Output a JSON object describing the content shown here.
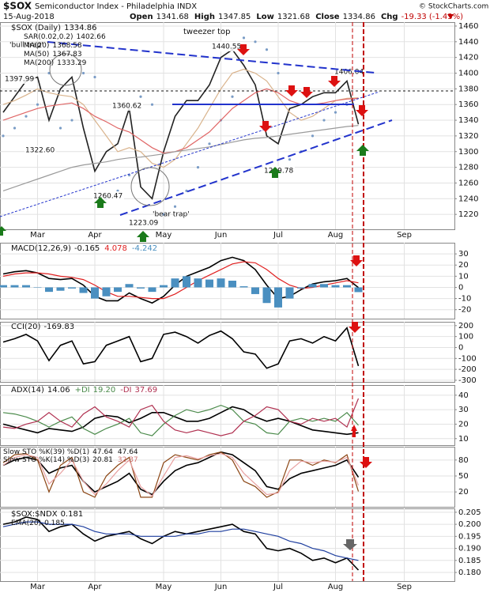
{
  "chart_data": [
    {
      "type": "line",
      "title": "$SOX",
      "subtitle": "Semiconductor Index - Philadelphia INDX",
      "date": "15-Aug-2018",
      "stats": [
        {
          "label": "Open",
          "value": 1341.68
        },
        {
          "label": "High",
          "value": 1347.85
        },
        {
          "label": "Low",
          "value": 1321.68
        },
        {
          "label": "Close",
          "value": 1334.86
        },
        {
          "label": "Chg",
          "value": -19.33
        }
      ],
      "change_pct": {
        "value": -1.43,
        "label": "(-1.43%)"
      },
      "source": "© StockCharts.com",
      "annotations": [
        "tweezer top",
        "'bear trap'",
        "'bull trap'"
      ],
      "price_labels": [
        1397.99,
        {
          "value": 1322.6,
          "label": "1322.60"
        },
        1260.47,
        1223.09,
        1360.62,
        1440.55,
        1299.78,
        1406.04
      ],
      "categories": [
        null,
        null,
        null,
        "Mar",
        null,
        null,
        null,
        null,
        "Apr",
        null,
        null,
        null,
        null,
        null,
        "May",
        null,
        null,
        null,
        null,
        "Jun",
        null,
        null,
        null,
        null,
        "Jul",
        null,
        null,
        null,
        null,
        "Aug",
        null,
        null,
        null,
        null,
        null,
        "Sep"
      ],
      "ylim": [
        1201,
        1465
      ],
      "yticks": [
        1220,
        1240,
        1260,
        1280,
        1300,
        1320,
        1340,
        1360,
        1380,
        1400,
        1420,
        1440,
        1460
      ],
      "grid": true,
      "series": [
        {
          "name": "$SOX (Daily)",
          "color": "#222222",
          "values": [
            1350,
            1370,
            1390,
            1395,
            1340,
            1380,
            1395,
            1330,
            1275,
            1300,
            1310,
            1355,
            1255,
            1240,
            1300,
            1345,
            1365,
            1365,
            1385,
            1420,
            1430,
            1410,
            1385,
            1320,
            1310,
            1355,
            1360,
            1370,
            1375,
            1375,
            1390,
            1334.86,
            null,
            null,
            null,
            null
          ]
        },
        {
          "name": "SAR(0.02,0.2)",
          "color": "#7a9cc6",
          "style": "dots",
          "values": [
            1320,
            1330,
            1345,
            1360,
            1400,
            1330,
            1340,
            1400,
            1395,
            1240,
            1250,
            1270,
            1370,
            1360,
            1220,
            1230,
            1250,
            1280,
            1310,
            1340,
            1370,
            1445,
            1440,
            1430,
            1400,
            1290,
            1300,
            1320,
            1340,
            1350,
            1360,
            1402.66,
            null,
            null,
            null,
            null
          ]
        },
        {
          "name": "MA(20)",
          "color": "#d9b38c",
          "values": [
            1360,
            1365,
            1372,
            1380,
            1375,
            1372,
            1370,
            1360,
            1340,
            1320,
            1300,
            1305,
            1300,
            1285,
            1280,
            1290,
            1310,
            1330,
            1355,
            1380,
            1400,
            1405,
            1400,
            1390,
            1370,
            1350,
            1340,
            1345,
            1355,
            1365,
            1368,
            1368.58,
            null,
            null,
            null,
            null
          ]
        },
        {
          "name": "MA(50)",
          "color": "#e06666",
          "values": [
            1340,
            1345,
            1350,
            1355,
            1358,
            1360,
            1362,
            1355,
            1345,
            1338,
            1330,
            1325,
            1315,
            1305,
            1298,
            1300,
            1305,
            1315,
            1325,
            1340,
            1355,
            1365,
            1375,
            1380,
            1375,
            1365,
            1360,
            1360,
            1362,
            1365,
            1367,
            1367.83,
            null,
            null,
            null,
            null
          ]
        },
        {
          "name": "MA(200)",
          "color": "#9a9a9a",
          "values": [
            1250,
            1255,
            1260,
            1265,
            1270,
            1275,
            1280,
            1283,
            1285,
            1287,
            1290,
            1292,
            1293,
            1295,
            1297,
            1300,
            1302,
            1304,
            1306,
            1309,
            1312,
            1315,
            1317,
            1318,
            1320,
            1322,
            1324,
            1326,
            1328,
            1330,
            1332,
            1333.29,
            null,
            null,
            null,
            null
          ]
        }
      ]
    },
    {
      "type": "line",
      "ylim": [
        -28,
        40
      ],
      "yticks": [
        30,
        20,
        10,
        0,
        -10,
        -20
      ],
      "grid": true,
      "series": [
        {
          "name": "MACD(12,26,9)",
          "color": "#000000",
          "values": [
            12,
            14,
            15,
            13,
            8,
            7,
            8,
            2,
            -8,
            -12,
            -12,
            -5,
            -10,
            -14,
            -8,
            2,
            10,
            14,
            18,
            24,
            27,
            24,
            16,
            2,
            -10,
            -8,
            -2,
            3,
            5,
            6,
            8,
            -0.165
          ]
        },
        {
          "color": "#e02020",
          "values": [
            10,
            12,
            13,
            13,
            12,
            10,
            9,
            7,
            2,
            -4,
            -8,
            -8,
            -9,
            -10,
            -10,
            -6,
            0,
            6,
            11,
            16,
            21,
            23,
            22,
            16,
            8,
            2,
            -1,
            0,
            2,
            4,
            6,
            4.078
          ]
        },
        {
          "color": "#4a8fc0",
          "style": "bar",
          "values": [
            2,
            2,
            2,
            0,
            -4,
            -3,
            -1,
            -5,
            -10,
            -8,
            -4,
            3,
            -1,
            -4,
            2,
            8,
            10,
            8,
            7,
            8,
            6,
            1,
            -6,
            -14,
            -18,
            -10,
            -1,
            3,
            3,
            2,
            2,
            -4.242
          ]
        }
      ]
    },
    {
      "type": "line",
      "ylim": [
        -315,
        235
      ],
      "yticks": [
        200,
        100,
        0,
        -100,
        -200,
        -300
      ],
      "grid": true,
      "series": [
        {
          "name": "CCI(20)",
          "color": "#000000",
          "values": [
            50,
            80,
            120,
            60,
            -120,
            20,
            60,
            -150,
            -130,
            20,
            60,
            100,
            -130,
            -100,
            120,
            140,
            100,
            40,
            110,
            150,
            80,
            -40,
            -60,
            -190,
            -150,
            60,
            80,
            40,
            100,
            60,
            180,
            -169.83
          ]
        }
      ]
    },
    {
      "type": "line",
      "ylim": [
        5.5,
        47
      ],
      "yticks": [
        40,
        30,
        20,
        10
      ],
      "grid": true,
      "series": [
        {
          "name": "ADX(14)",
          "color": "#000000",
          "values": [
            20,
            18,
            16,
            14,
            17,
            16,
            15,
            18,
            24,
            26,
            25,
            21,
            24,
            28,
            28,
            25,
            22,
            22,
            24,
            28,
            32,
            30,
            25,
            22,
            24,
            22,
            19,
            16,
            15,
            14,
            13,
            14.06
          ]
        },
        {
          "name": "+DI",
          "color": "#4a8a4a",
          "values": [
            28,
            27,
            25,
            22,
            18,
            22,
            25,
            17,
            13,
            17,
            20,
            24,
            14,
            12,
            20,
            26,
            30,
            28,
            30,
            33,
            30,
            22,
            20,
            14,
            13,
            22,
            24,
            22,
            24,
            22,
            28,
            19.2
          ],
          "value_labels": [
            null,
            null,
            null,
            null,
            null,
            null,
            null,
            null,
            null,
            null,
            null,
            null,
            null,
            null,
            null,
            null,
            null,
            null,
            null,
            null,
            null,
            null,
            null,
            null,
            null,
            null,
            null,
            null,
            null,
            null,
            null,
            "19.20"
          ]
        },
        {
          "name": "-DI",
          "color": "#b03050",
          "values": [
            18,
            17,
            20,
            22,
            28,
            22,
            18,
            27,
            32,
            25,
            22,
            18,
            30,
            33,
            22,
            16,
            14,
            16,
            14,
            12,
            14,
            22,
            26,
            32,
            30,
            22,
            20,
            24,
            22,
            24,
            18,
            37.69
          ]
        }
      ]
    },
    {
      "type": "line",
      "ylim": [
        -8,
        105
      ],
      "yticks": [
        80,
        50,
        20
      ],
      "grid": true,
      "series": [
        {
          "name": "Slow STO %K(39) %D(1)",
          "color": "#000000",
          "values": [
            70,
            80,
            85,
            80,
            55,
            65,
            70,
            40,
            20,
            30,
            40,
            55,
            25,
            15,
            40,
            60,
            70,
            75,
            85,
            95,
            90,
            75,
            60,
            30,
            25,
            45,
            55,
            60,
            65,
            70,
            80,
            47.64
          ]
        },
        {
          "name": "Slow STO %K(14) %D(3)",
          "color": "#8b4513",
          "values": [
            75,
            90,
            92,
            80,
            20,
            70,
            85,
            20,
            10,
            50,
            70,
            85,
            10,
            10,
            75,
            90,
            85,
            80,
            90,
            95,
            80,
            40,
            30,
            10,
            20,
            80,
            80,
            70,
            80,
            75,
            90,
            20.81
          ]
        },
        {
          "color": "#e8a0a0",
          "values": [
            70,
            85,
            90,
            85,
            35,
            55,
            80,
            40,
            15,
            35,
            60,
            80,
            30,
            12,
            50,
            85,
            88,
            82,
            88,
            92,
            85,
            55,
            35,
            15,
            18,
            60,
            78,
            75,
            78,
            76,
            85,
            32.37
          ]
        }
      ]
    },
    {
      "type": "line",
      "ylim": [
        0.1764,
        0.2066
      ],
      "yticks": [
        0.205,
        {
          "value": 0.2,
          "label": "0.200"
        },
        0.195,
        {
          "value": 0.19,
          "label": "0.190"
        },
        0.185,
        {
          "value": 0.18,
          "label": "0.180"
        }
      ],
      "grid": true,
      "categories": [
        null,
        null,
        null,
        "Mar",
        null,
        null,
        null,
        null,
        "Apr",
        null,
        null,
        null,
        null,
        null,
        "May",
        null,
        null,
        null,
        null,
        "Jun",
        null,
        null,
        null,
        null,
        "Jul",
        null,
        null,
        null,
        null,
        "Aug",
        null,
        null,
        null,
        null,
        null,
        "Sep"
      ],
      "series": [
        {
          "name": "$SOX:$NDX",
          "color": "#000000",
          "values": [
            0.2,
            0.201,
            0.203,
            0.202,
            0.197,
            0.199,
            0.2,
            0.196,
            0.193,
            0.195,
            0.196,
            0.197,
            0.194,
            0.192,
            0.195,
            0.197,
            0.196,
            0.197,
            0.198,
            0.199,
            0.2,
            0.197,
            0.196,
            0.19,
            0.189,
            0.19,
            0.188,
            0.185,
            0.186,
            0.184,
            0.186,
            0.181,
            null,
            null,
            null,
            null
          ]
        },
        {
          "name": "EMA(20)",
          "color": "#1f3f9f",
          "values": [
            0.199,
            0.2,
            0.201,
            0.201,
            0.2,
            0.2,
            0.2,
            0.199,
            0.197,
            0.196,
            0.196,
            0.196,
            0.195,
            0.195,
            0.195,
            0.195,
            0.196,
            0.196,
            0.197,
            0.197,
            0.198,
            0.198,
            0.197,
            0.196,
            0.195,
            0.193,
            0.192,
            0.19,
            0.189,
            0.187,
            0.186,
            0.185,
            null,
            null,
            null,
            null
          ]
        }
      ]
    }
  ]
}
